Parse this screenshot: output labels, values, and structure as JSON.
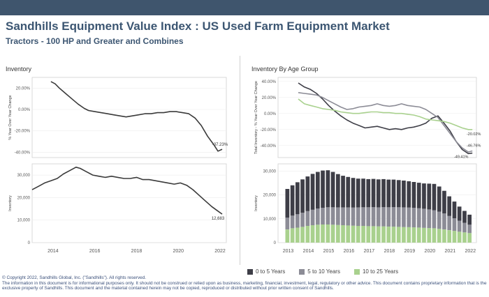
{
  "header": {
    "title": "Sandhills Equipment Value Index : US Used Farm Equipment Market",
    "subtitle": "Tractors - 100 HP and Greater and Combines"
  },
  "colors": {
    "header_bar": "#3f556d",
    "title_text": "#3c5672",
    "line_dark": "#3a3a3a",
    "age_0_5": "#3e3e47",
    "age_5_10": "#8c8c96",
    "age_10_25": "#a9d18e"
  },
  "left_panel": {
    "title": "Inventory"
  },
  "right_panel": {
    "title": "Inventory By Age Group"
  },
  "legend": [
    "0 to 5 Years",
    "5 to 10 Years",
    "10 to 25 Years"
  ],
  "footer": {
    "copyright": "© Copyright 2022, Sandhills Global, Inc. (\"Sandhills\"). All rights reserved.",
    "disclaimer": "The information in this document is for informational purposes only.  It should not be construed or relied upon as business, marketing, financial, investment, legal, regulatory or other advice. This document contains proprietary information that is the exclusive property of Sandhills. This document and the material contained herein may not be copied, reproduced or distributed without prior written consent of Sandhills."
  },
  "chart_data": [
    {
      "id": "inventory_yoy",
      "type": "line",
      "ylabel": "% Year Over Year Change",
      "yticks": [
        "20.00%",
        "0.00%",
        "-20.00%",
        "-40.00%"
      ],
      "ylim": [
        -45,
        30
      ],
      "xlim": [
        2013,
        2022.3
      ],
      "annotation": "-37.23%",
      "series": [
        {
          "x": [
            2013.9,
            2014.1,
            2014.3,
            2014.6,
            2014.9,
            2015.2,
            2015.5,
            2015.7,
            2016.0,
            2016.3,
            2016.6,
            2016.9,
            2017.2,
            2017.5,
            2017.8,
            2018.1,
            2018.4,
            2018.7,
            2019.0,
            2019.3,
            2019.6,
            2019.9,
            2020.2,
            2020.5,
            2020.8,
            2021.1,
            2021.4,
            2021.7,
            2021.9,
            2022.1
          ],
          "y": [
            26,
            24,
            20,
            15,
            10,
            5,
            1,
            -1,
            -2,
            -3,
            -4,
            -5,
            -6,
            -7,
            -6,
            -5,
            -4,
            -4,
            -3,
            -3,
            -2,
            -2,
            -3,
            -4,
            -8,
            -15,
            -25,
            -33,
            -39,
            -37.23
          ]
        }
      ]
    },
    {
      "id": "inventory_units",
      "type": "line",
      "ylabel": "Inventory",
      "yticks": [
        "30,000",
        "20,000",
        "10,000",
        "0"
      ],
      "xticks": [
        "2014",
        "2016",
        "2018",
        "2020",
        "2022"
      ],
      "ylim": [
        0,
        35000
      ],
      "xlim": [
        2013,
        2022.3
      ],
      "annotation": "12,683",
      "series": [
        {
          "x": [
            2013.0,
            2013.3,
            2013.6,
            2013.9,
            2014.2,
            2014.5,
            2014.8,
            2015.1,
            2015.3,
            2015.6,
            2015.9,
            2016.2,
            2016.5,
            2016.8,
            2017.1,
            2017.4,
            2017.7,
            2018.0,
            2018.3,
            2018.6,
            2018.9,
            2019.2,
            2019.5,
            2019.8,
            2020.1,
            2020.4,
            2020.7,
            2021.0,
            2021.3,
            2021.6,
            2021.9,
            2022.1
          ],
          "y": [
            23500,
            25000,
            26500,
            27500,
            28500,
            30500,
            32000,
            33500,
            33000,
            31500,
            30000,
            29500,
            29000,
            29500,
            29000,
            28500,
            28500,
            29000,
            28000,
            28000,
            27500,
            27000,
            26500,
            26000,
            26500,
            25500,
            23500,
            21000,
            18500,
            16000,
            14000,
            12683
          ]
        }
      ]
    },
    {
      "id": "inventory_by_age_yoy",
      "type": "line",
      "ylabel": "Total Inventory - % Year Over Year Change",
      "yticks": [
        "40.00%",
        "20.00%",
        "0.00%",
        "-20.00%",
        "-40.00%"
      ],
      "ylim": [
        -55,
        45
      ],
      "xlim": [
        2012.5,
        2022.3
      ],
      "annotations": [
        "-20.02%",
        "-46.76%",
        "-49.41%"
      ],
      "series": [
        {
          "name": "0 to 5 Years",
          "x": [
            2013.5,
            2013.8,
            2014.1,
            2014.4,
            2014.7,
            2015.0,
            2015.3,
            2015.6,
            2015.9,
            2016.2,
            2016.5,
            2016.8,
            2017.1,
            2017.4,
            2017.7,
            2018.0,
            2018.3,
            2018.6,
            2018.9,
            2019.2,
            2019.5,
            2019.8,
            2020.1,
            2020.4,
            2020.7,
            2021.0,
            2021.3,
            2021.6,
            2021.9,
            2022.1
          ],
          "y": [
            38,
            33,
            30,
            25,
            18,
            10,
            3,
            -3,
            -8,
            -12,
            -15,
            -18,
            -17,
            -16,
            -18,
            -20,
            -19,
            -20,
            -18,
            -17,
            -15,
            -12,
            -6,
            -3,
            -12,
            -22,
            -35,
            -45,
            -50,
            -49.41
          ]
        },
        {
          "name": "5 to 10 Years",
          "x": [
            2013.5,
            2013.8,
            2014.1,
            2014.4,
            2014.7,
            2015.0,
            2015.3,
            2015.6,
            2015.9,
            2016.2,
            2016.5,
            2016.8,
            2017.1,
            2017.4,
            2017.7,
            2018.0,
            2018.3,
            2018.6,
            2018.9,
            2019.2,
            2019.5,
            2019.8,
            2020.1,
            2020.4,
            2020.7,
            2021.0,
            2021.3,
            2021.6,
            2021.9,
            2022.1
          ],
          "y": [
            26,
            25,
            24,
            23,
            20,
            16,
            12,
            8,
            5,
            6,
            8,
            9,
            10,
            12,
            10,
            9,
            10,
            12,
            10,
            9,
            8,
            5,
            0,
            -5,
            -15,
            -25,
            -35,
            -43,
            -48,
            -46.76
          ]
        },
        {
          "name": "10 to 25 Years",
          "x": [
            2013.5,
            2013.8,
            2014.1,
            2014.4,
            2014.7,
            2015.0,
            2015.3,
            2015.6,
            2015.9,
            2016.2,
            2016.5,
            2016.8,
            2017.1,
            2017.4,
            2017.7,
            2018.0,
            2018.3,
            2018.6,
            2018.9,
            2019.2,
            2019.5,
            2019.8,
            2020.1,
            2020.4,
            2020.7,
            2021.0,
            2021.3,
            2021.6,
            2021.9,
            2022.1
          ],
          "y": [
            18,
            12,
            10,
            8,
            6,
            5,
            4,
            2,
            1,
            0,
            0,
            1,
            2,
            2,
            1,
            1,
            0,
            0,
            -1,
            -2,
            -4,
            -7,
            -8,
            -9,
            -10,
            -12,
            -15,
            -18,
            -20,
            -20.02
          ]
        }
      ]
    },
    {
      "id": "inventory_by_age_units",
      "type": "bar",
      "stacked": true,
      "ylabel": "Inventory",
      "yticks": [
        "30,000",
        "20,000",
        "10,000",
        "0"
      ],
      "xticks": [
        "2013",
        "2014",
        "2015",
        "2016",
        "2017",
        "2018",
        "2019",
        "2020",
        "2021",
        "2022"
      ],
      "ylim": [
        0,
        33000
      ],
      "xlim": [
        2012.5,
        2022.3
      ],
      "x": [
        2012.96,
        2013.21,
        2013.46,
        2013.71,
        2013.96,
        2014.21,
        2014.46,
        2014.71,
        2014.96,
        2015.21,
        2015.46,
        2015.71,
        2015.96,
        2016.21,
        2016.46,
        2016.71,
        2016.96,
        2017.21,
        2017.46,
        2017.71,
        2017.96,
        2018.21,
        2018.46,
        2018.71,
        2018.96,
        2019.21,
        2019.46,
        2019.71,
        2019.96,
        2020.21,
        2020.46,
        2020.71,
        2020.96,
        2021.21,
        2021.46,
        2021.71,
        2021.96
      ],
      "series": [
        {
          "name": "10 to 25 Years",
          "values": [
            5500,
            6000,
            6300,
            6600,
            7000,
            7300,
            7500,
            7600,
            7600,
            7500,
            7400,
            7300,
            7200,
            7100,
            7000,
            7000,
            6900,
            6900,
            6800,
            6800,
            6700,
            6700,
            6600,
            6500,
            6500,
            6400,
            6300,
            6200,
            6100,
            6000,
            5800,
            5500,
            5200,
            4900,
            4600,
            4300,
            4000
          ]
        },
        {
          "name": "5 to 10 Years",
          "values": [
            5000,
            5300,
            5600,
            5900,
            6200,
            6500,
            6800,
            7000,
            7200,
            7300,
            7300,
            7400,
            7500,
            7600,
            7700,
            7800,
            7900,
            8000,
            8000,
            8100,
            8100,
            8200,
            8200,
            8300,
            8200,
            8200,
            8100,
            8000,
            7800,
            7600,
            7200,
            6700,
            6000,
            5300,
            4600,
            4000,
            3500
          ]
        },
        {
          "name": "0 to 5 Years",
          "values": [
            12000,
            12700,
            13400,
            14000,
            14500,
            15000,
            15300,
            15600,
            15500,
            14800,
            14000,
            13300,
            12800,
            12400,
            12100,
            12000,
            11800,
            11800,
            11700,
            11700,
            11600,
            11500,
            11400,
            11200,
            11000,
            10800,
            10700,
            10600,
            10800,
            11000,
            10500,
            9500,
            8200,
            7000,
            5900,
            5000,
            4200
          ]
        }
      ]
    }
  ]
}
